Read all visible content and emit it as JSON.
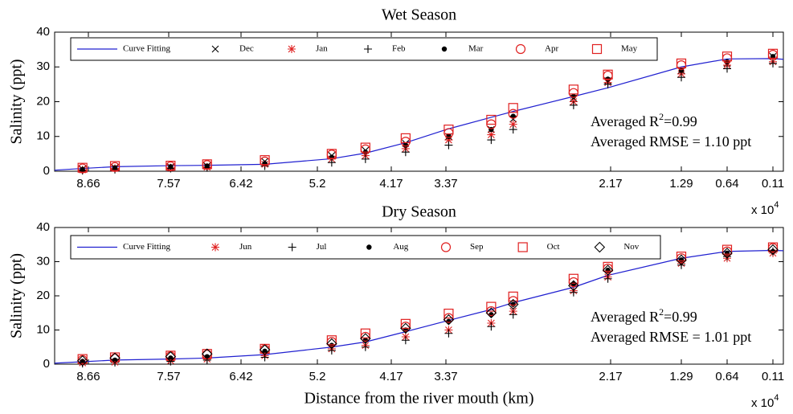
{
  "chart_data": [
    {
      "type": "line",
      "title": "Wet Season",
      "ylabel": "Salinity (ppt)",
      "x_multiplier": "x 10",
      "x_multiplier_exp": "4",
      "annotation_r2": "Averaged R",
      "annotation_r2_sup": "2",
      "annotation_r2_value": "=0.99",
      "annotation_rmse": "Averaged RMSE = 1.10 ppt",
      "xlim": [
        9.12,
        0.03
      ],
      "xticks": [
        8.66,
        7.57,
        6.42,
        5.2,
        4.17,
        3.37,
        2.17,
        1.29,
        0.64,
        0.11
      ],
      "ylim": [
        0,
        40
      ],
      "yticks": [
        0,
        10,
        20,
        30,
        40
      ],
      "legend": "top",
      "x": [
        8.74,
        8.3,
        7.54,
        6.96,
        6.04,
        5.0,
        4.53,
        3.96,
        3.35,
        3.04,
        2.88,
        2.44,
        2.19,
        1.29,
        0.64,
        0.11
      ],
      "series": [
        {
          "name": "Curve Fitting",
          "color": "#2020d0",
          "x": [
            9.12,
            8.74,
            8.3,
            7.54,
            6.96,
            6.04,
            5.0,
            4.53,
            3.96,
            3.35,
            3.04,
            2.88,
            2.44,
            2.19,
            1.29,
            0.64,
            0.11,
            0.03
          ],
          "values": [
            0.3,
            0.8,
            1.3,
            1.6,
            1.7,
            2.0,
            3.6,
            5.2,
            8.2,
            12.2,
            15.5,
            17.2,
            21.5,
            24.0,
            30.0,
            32.3,
            32.4,
            32.2
          ]
        },
        {
          "name": "Dec",
          "color": "#000000",
          "marker": "cross",
          "values": [
            0.6,
            1.0,
            1.2,
            1.5,
            2.8,
            4.5,
            6,
            8,
            10,
            12,
            15,
            21,
            26,
            29,
            31,
            33
          ]
        },
        {
          "name": "Jan",
          "color": "#e02020",
          "marker": "asterisk",
          "values": [
            0.4,
            0.8,
            1.0,
            1.2,
            2.0,
            3.5,
            4.5,
            6.5,
            9,
            10.5,
            13.5,
            20,
            25.5,
            28,
            30.5,
            31.5
          ]
        },
        {
          "name": "Feb",
          "color": "#000000",
          "marker": "plus",
          "values": [
            0.2,
            0.5,
            0.8,
            1.0,
            1.5,
            2.5,
            3.5,
            5.5,
            7.5,
            9,
            12,
            19,
            25,
            27,
            29.5,
            31
          ]
        },
        {
          "name": "Mar",
          "color": "#000000",
          "marker": "dot",
          "values": [
            0.5,
            1.0,
            1.3,
            1.5,
            2.2,
            4,
            5.5,
            7.5,
            10,
            12,
            15.8,
            21.5,
            26.5,
            29,
            31.5,
            33
          ]
        },
        {
          "name": "Apr",
          "color": "#e02020",
          "marker": "circle",
          "values": [
            0.8,
            1.2,
            1.4,
            1.8,
            2.8,
            4.8,
            6.3,
            8.5,
            11,
            13.5,
            16.5,
            22.5,
            27.5,
            30.5,
            32.5,
            33.5
          ]
        },
        {
          "name": "May",
          "color": "#e02020",
          "marker": "square",
          "values": [
            1.0,
            1.5,
            1.6,
            2.0,
            3.2,
            5.0,
            6.8,
            9.5,
            12,
            14.8,
            18.2,
            23.5,
            27.8,
            31,
            33,
            33.8
          ]
        }
      ]
    },
    {
      "type": "line",
      "title": "Dry Season",
      "ylabel": "Salinity (ppt)",
      "xlabel": "Distance from the river mouth (km)",
      "x_multiplier": "x 10",
      "x_multiplier_exp": "4",
      "annotation_r2": "Averaged R",
      "annotation_r2_sup": "2",
      "annotation_r2_value": "=0.99",
      "annotation_rmse": "Averaged RMSE = 1.01 ppt",
      "xlim": [
        9.12,
        0.03
      ],
      "xticks": [
        8.66,
        7.57,
        6.42,
        5.2,
        4.17,
        3.37,
        2.17,
        1.29,
        0.64,
        0.11
      ],
      "ylim": [
        0,
        40
      ],
      "yticks": [
        0,
        10,
        20,
        30,
        40
      ],
      "legend": "top",
      "x": [
        8.74,
        8.3,
        7.54,
        6.96,
        6.04,
        5.0,
        4.53,
        3.96,
        3.35,
        3.04,
        2.88,
        2.44,
        2.19,
        1.29,
        0.64,
        0.11
      ],
      "series": [
        {
          "name": "Curve Fitting",
          "color": "#2020d0",
          "x": [
            9.12,
            8.74,
            8.3,
            7.54,
            6.96,
            6.04,
            5.0,
            4.53,
            3.96,
            3.35,
            3.04,
            2.88,
            2.44,
            2.19,
            1.29,
            0.64,
            0.11,
            0.03
          ],
          "values": [
            0.3,
            0.7,
            1.2,
            1.5,
            1.8,
            2.8,
            5.0,
            6.5,
            9.5,
            12.8,
            16,
            18,
            22.5,
            26,
            31,
            33,
            33.3,
            33.2
          ]
        },
        {
          "name": "Jun",
          "color": "#e02020",
          "marker": "asterisk",
          "values": [
            0.4,
            0.6,
            1.0,
            1.5,
            2.5,
            4.5,
            5.5,
            8,
            10,
            12,
            15.5,
            21.5,
            25.5,
            29.5,
            31,
            32.5
          ]
        },
        {
          "name": "Jul",
          "color": "#000000",
          "marker": "plus",
          "values": [
            0.2,
            0.5,
            0.8,
            1.2,
            2.0,
            4,
            5,
            7,
            9,
            11,
            14.5,
            21,
            25,
            29,
            31.5,
            33
          ]
        },
        {
          "name": "Aug",
          "color": "#000000",
          "marker": "dot",
          "values": [
            0.8,
            1.2,
            1.8,
            2.2,
            3.8,
            5.5,
            7,
            10,
            12.5,
            14.5,
            17.5,
            23.5,
            27.5,
            30.5,
            32.5,
            33
          ]
        },
        {
          "name": "Sep",
          "color": "#e02020",
          "marker": "circle",
          "values": [
            1.2,
            1.7,
            2.3,
            2.8,
            4.3,
            6.5,
            8,
            11,
            13.5,
            15.5,
            18.5,
            24,
            28,
            31,
            33,
            34
          ]
        },
        {
          "name": "Oct",
          "color": "#e02020",
          "marker": "square",
          "values": [
            1.5,
            2.0,
            2.5,
            3.0,
            4.5,
            7.0,
            9,
            11.8,
            14.8,
            16.8,
            19.8,
            25,
            28.5,
            31.5,
            33.5,
            34.2
          ]
        },
        {
          "name": "Nov",
          "color": "#000000",
          "marker": "diamond",
          "values": [
            1.0,
            1.8,
            2.2,
            3.0,
            4.2,
            6,
            7.5,
            10.5,
            13,
            15,
            17.5,
            23,
            27.5,
            30.5,
            32.5,
            33.5
          ]
        }
      ]
    }
  ]
}
